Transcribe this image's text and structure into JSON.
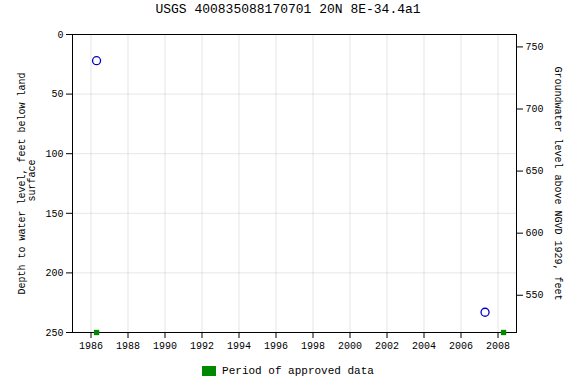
{
  "chart_data": {
    "type": "scatter",
    "title": "USGS 400835088170701 20N 8E-34.4a1",
    "ylabel": "Depth to water level, feet below land\n surface",
    "y2label": "Groundwater level above NGVD 1929, feet",
    "xlim": [
      1985.0,
      2009.0
    ],
    "xticks": [
      1986,
      1988,
      1990,
      1992,
      1994,
      1996,
      1998,
      2000,
      2002,
      2004,
      2006,
      2008
    ],
    "ylim": [
      250,
      0
    ],
    "yticks": [
      0,
      50,
      100,
      150,
      200,
      250
    ],
    "y2lim": [
      520,
      760
    ],
    "y2ticks": [
      550,
      600,
      650,
      700,
      750
    ],
    "grid": true,
    "legend": "bottom",
    "series": [
      {
        "x": [
          1986.3,
          2007.3
        ],
        "values": [
          22,
          233
        ],
        "color": "#0000cc",
        "marker": "circle"
      },
      {
        "name": "Period of approved data",
        "x": [
          1986.3,
          2008.3
        ],
        "values": [
          250,
          250
        ],
        "color": "#008800",
        "marker": "square"
      }
    ]
  }
}
